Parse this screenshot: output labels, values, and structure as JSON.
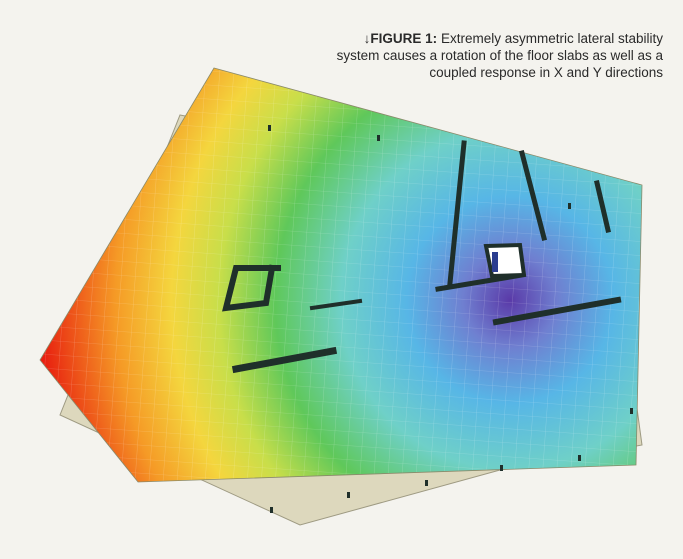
{
  "caption": {
    "arrow": "↓",
    "label": "FIGURE 1:",
    "text": "Extremely asymmetric lateral stability system causes a rotation of the floor slabs as well as a coupled response in X and Y directions"
  },
  "colors": {
    "background": "#f4f3ee",
    "undeformed_slab": "#ddd8bd",
    "contour_low": "#ff0000",
    "contour_mid": "#5fc85a",
    "contour_high": "#5a3aa8",
    "walls": "#1f2f2a"
  }
}
